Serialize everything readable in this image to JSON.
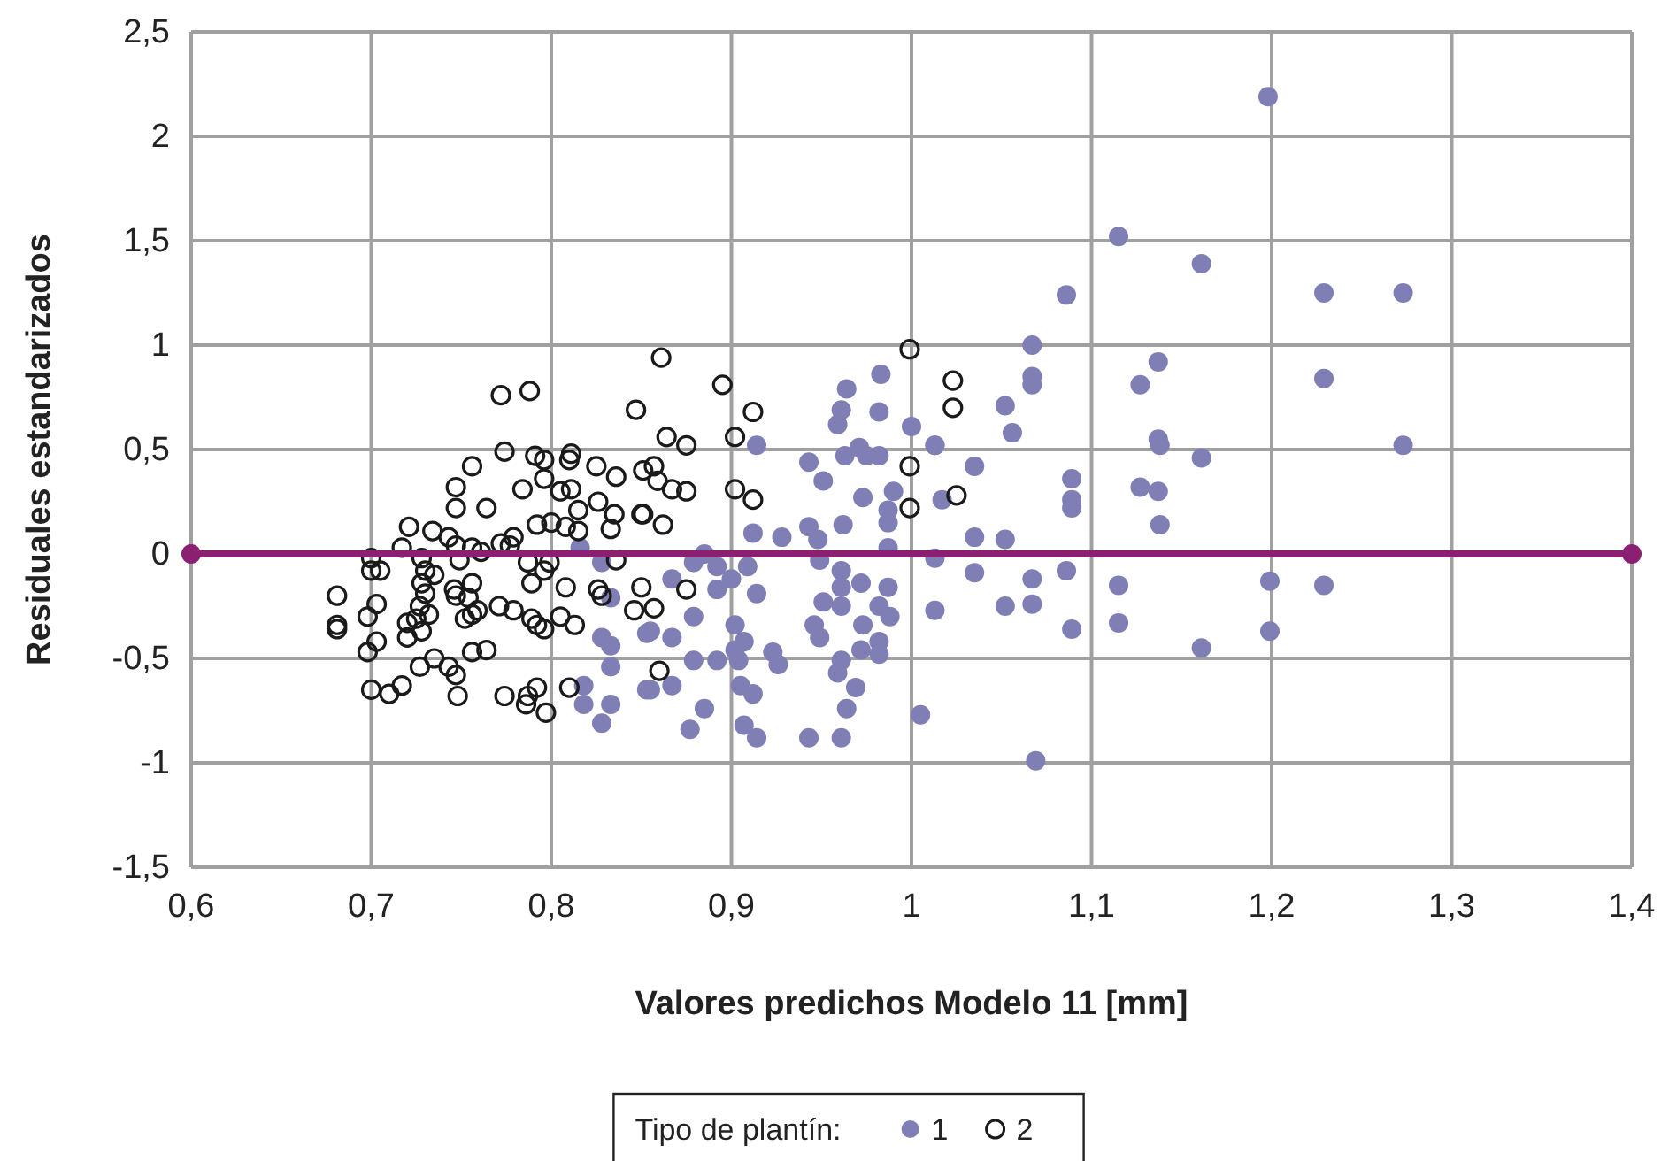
{
  "chart_data": {
    "type": "scatter",
    "xlabel": "Valores predichos Modelo 11 [mm]",
    "ylabel": "Residuales estandarizados",
    "legend_title": "Tipo de plantín:",
    "legend": "bottom",
    "grid": true,
    "marker": "circle",
    "xlim": [
      0.6,
      1.4
    ],
    "xticks": [
      {
        "value": 0.6,
        "label": "0,6"
      },
      {
        "value": 0.7,
        "label": "0,7"
      },
      {
        "value": 0.8,
        "label": "0,8"
      },
      {
        "value": 0.9,
        "label": "0,9"
      },
      {
        "value": 1,
        "label": "1"
      },
      {
        "value": 1.1,
        "label": "1,1"
      },
      {
        "value": 1.2,
        "label": "1,2"
      },
      {
        "value": 1.3,
        "label": "1,3"
      },
      {
        "value": 1.4,
        "label": "1,4"
      }
    ],
    "ylim": [
      -1.5,
      2.5
    ],
    "yticks": [
      {
        "value": -1.5,
        "label": "-1,5"
      },
      {
        "value": -1,
        "label": "-1"
      },
      {
        "value": -0.5,
        "label": "-0,5"
      },
      {
        "value": 0,
        "label": "0"
      },
      {
        "value": 0.5,
        "label": "0,5"
      },
      {
        "value": 1,
        "label": "1"
      },
      {
        "value": 1.5,
        "label": "1,5"
      },
      {
        "value": 2,
        "label": "2"
      },
      {
        "value": 2.5,
        "label": "2,5"
      }
    ],
    "series": [
      {
        "name": "1",
        "color": "#7f7fb5",
        "x": [
          1.198,
          1.115,
          1.161,
          1.229,
          1.273,
          1.086,
          1.067,
          1.229,
          1.273,
          1.137,
          1.127,
          1.052,
          1.056,
          1.013,
          1.035,
          1.067,
          1.067,
          1.089,
          1.089,
          1.089,
          1.137,
          1.138,
          1.161,
          1.127,
          1.137,
          1.138,
          1.017,
          1.035,
          1.052,
          1.013,
          1.035,
          1.067,
          1.086,
          1.052,
          1.067,
          1.089,
          1.115,
          1.115,
          1.161,
          1.199,
          1.199,
          1.229,
          1.013,
          1.069,
          1.005,
          0.983,
          0.964,
          0.961,
          0.959,
          0.982,
          1.0,
          1.013,
          0.914,
          0.943,
          0.951,
          0.963,
          0.971,
          0.975,
          0.982,
          0.99,
          0.973,
          0.987,
          0.987,
          0.962,
          0.912,
          0.928,
          0.943,
          0.948,
          0.949,
          0.987,
          0.885,
          0.879,
          0.892,
          0.909,
          0.9,
          0.961,
          0.961,
          0.972,
          0.987,
          0.867,
          0.914,
          0.892,
          0.951,
          0.961,
          0.982,
          0.988,
          0.879,
          0.902,
          0.946,
          0.973,
          0.867,
          0.853,
          0.907,
          0.949,
          0.982,
          0.902,
          0.972,
          0.923,
          0.879,
          0.892,
          0.926,
          0.961,
          0.982,
          0.904,
          0.959,
          0.867,
          0.853,
          0.905,
          0.969,
          0.912,
          0.885,
          0.964,
          0.877,
          0.907,
          0.914,
          0.943,
          0.961,
          0.816,
          0.828,
          0.833,
          0.828,
          0.833,
          0.833,
          0.818,
          0.818,
          0.833,
          0.828,
          0.855,
          0.855
        ],
        "values": [
          2.19,
          1.52,
          1.39,
          1.25,
          1.25,
          1.24,
          1.0,
          0.84,
          0.52,
          0.92,
          0.81,
          0.71,
          0.58,
          0.52,
          0.42,
          0.85,
          0.81,
          0.36,
          0.26,
          0.22,
          0.55,
          0.52,
          0.46,
          0.32,
          0.3,
          0.14,
          0.26,
          0.08,
          0.07,
          -0.02,
          -0.09,
          -0.12,
          -0.08,
          -0.25,
          -0.24,
          -0.36,
          -0.15,
          -0.33,
          -0.45,
          -0.13,
          -0.37,
          -0.15,
          -0.27,
          -0.99,
          -0.77,
          0.86,
          0.79,
          0.69,
          0.62,
          0.68,
          0.61,
          0.52,
          0.52,
          0.44,
          0.35,
          0.47,
          0.51,
          0.47,
          0.47,
          0.3,
          0.27,
          0.21,
          0.15,
          0.14,
          0.1,
          0.08,
          0.13,
          0.07,
          -0.03,
          0.03,
          0.0,
          -0.04,
          -0.06,
          -0.06,
          -0.12,
          -0.08,
          -0.16,
          -0.14,
          -0.16,
          -0.12,
          -0.19,
          -0.17,
          -0.23,
          -0.25,
          -0.25,
          -0.3,
          -0.3,
          -0.34,
          -0.34,
          -0.34,
          -0.4,
          -0.38,
          -0.42,
          -0.4,
          -0.42,
          -0.46,
          -0.46,
          -0.47,
          -0.51,
          -0.51,
          -0.53,
          -0.51,
          -0.48,
          -0.51,
          -0.57,
          -0.63,
          -0.65,
          -0.63,
          -0.64,
          -0.67,
          -0.74,
          -0.74,
          -0.84,
          -0.82,
          -0.88,
          -0.88,
          -0.88,
          0.03,
          -0.04,
          -0.21,
          -0.4,
          -0.44,
          -0.54,
          -0.63,
          -0.72,
          -0.72,
          -0.81,
          -0.37,
          -0.65
        ]
      },
      {
        "name": "2",
        "color": "#1a1a1a",
        "x": [
          0.772,
          0.788,
          0.847,
          0.774,
          0.791,
          0.796,
          0.811,
          0.81,
          0.825,
          0.836,
          0.756,
          0.747,
          0.747,
          0.764,
          0.784,
          0.796,
          0.805,
          0.811,
          0.826,
          0.835,
          0.85,
          0.851,
          0.815,
          0.792,
          0.8,
          0.808,
          0.815,
          0.833,
          0.721,
          0.734,
          0.743,
          0.717,
          0.7,
          0.7,
          0.705,
          0.728,
          0.73,
          0.735,
          0.747,
          0.749,
          0.756,
          0.761,
          0.772,
          0.777,
          0.779,
          0.787,
          0.796,
          0.789,
          0.799,
          0.808,
          0.826,
          0.828,
          0.836,
          0.85,
          0.728,
          0.73,
          0.727,
          0.725,
          0.732,
          0.72,
          0.728,
          0.72,
          0.746,
          0.747,
          0.756,
          0.754,
          0.756,
          0.752,
          0.759,
          0.771,
          0.779,
          0.789,
          0.792,
          0.796,
          0.805,
          0.813,
          0.846,
          0.681,
          0.681,
          0.681,
          0.698,
          0.703,
          0.698,
          0.703,
          0.735,
          0.727,
          0.743,
          0.747,
          0.756,
          0.764,
          0.7,
          0.71,
          0.717,
          0.748,
          0.774,
          0.786,
          0.787,
          0.792,
          0.797,
          0.81,
          0.861,
          0.895,
          0.912,
          0.902,
          0.864,
          0.875,
          0.857,
          0.859,
          0.867,
          0.875,
          0.902,
          0.912,
          0.851,
          0.862,
          0.875,
          0.857,
          0.86,
          0.999,
          0.999,
          0.999,
          1.023,
          1.023,
          1.025
        ],
        "values": [
          0.76,
          0.78,
          0.69,
          0.49,
          0.47,
          0.45,
          0.48,
          0.45,
          0.42,
          0.37,
          0.42,
          0.32,
          0.22,
          0.22,
          0.31,
          0.36,
          0.3,
          0.31,
          0.25,
          0.19,
          0.19,
          0.4,
          0.21,
          0.14,
          0.15,
          0.13,
          0.11,
          0.12,
          0.13,
          0.11,
          0.08,
          0.03,
          -0.02,
          -0.08,
          -0.08,
          -0.02,
          -0.08,
          -0.1,
          0.04,
          -0.03,
          0.03,
          0.01,
          0.05,
          0.04,
          0.08,
          -0.04,
          -0.08,
          -0.14,
          -0.04,
          -0.16,
          -0.17,
          -0.2,
          -0.03,
          -0.16,
          -0.14,
          -0.19,
          -0.25,
          -0.31,
          -0.29,
          -0.33,
          -0.37,
          -0.4,
          -0.17,
          -0.2,
          -0.14,
          -0.21,
          -0.29,
          -0.31,
          -0.27,
          -0.25,
          -0.27,
          -0.31,
          -0.34,
          -0.36,
          -0.3,
          -0.34,
          -0.27,
          -0.2,
          -0.34,
          -0.36,
          -0.3,
          -0.24,
          -0.47,
          -0.42,
          -0.5,
          -0.54,
          -0.54,
          -0.58,
          -0.47,
          -0.46,
          -0.65,
          -0.67,
          -0.63,
          -0.68,
          -0.68,
          -0.72,
          -0.68,
          -0.64,
          -0.76,
          -0.64,
          0.94,
          0.81,
          0.68,
          0.56,
          0.56,
          0.52,
          0.42,
          0.35,
          0.31,
          0.3,
          0.31,
          0.26,
          0.19,
          0.14,
          -0.17,
          -0.26,
          -0.56,
          0.98,
          0.42,
          0.22,
          0.83,
          0.7,
          0.28
        ]
      },
      {
        "type": "line",
        "color": "#8b1f72",
        "marker": "circle",
        "x": [
          0.6,
          1.4
        ],
        "values": [
          0,
          0
        ]
      }
    ]
  }
}
